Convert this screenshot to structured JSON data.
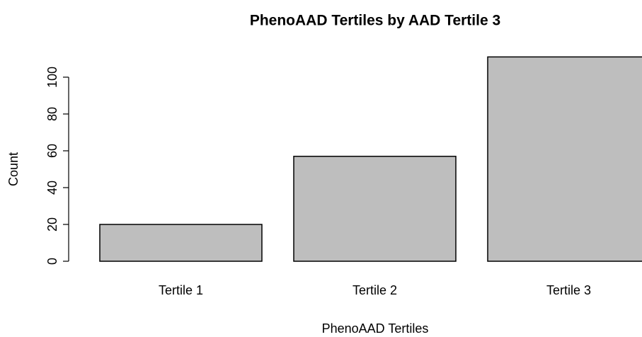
{
  "chart_data": {
    "type": "bar",
    "title": "PhenoAAD Tertiles by AAD Tertile 3",
    "x_label": "PhenoAAD Tertiles",
    "y_label": "Count",
    "categories": [
      "Tertile 1",
      "Tertile 2",
      "Tertile 3"
    ],
    "values": [
      20,
      57,
      111
    ],
    "color": "#bebebe",
    "ylim": [
      0,
      115
    ],
    "yticks": [
      0,
      20,
      40,
      60,
      80,
      100
    ],
    "grid": false
  }
}
